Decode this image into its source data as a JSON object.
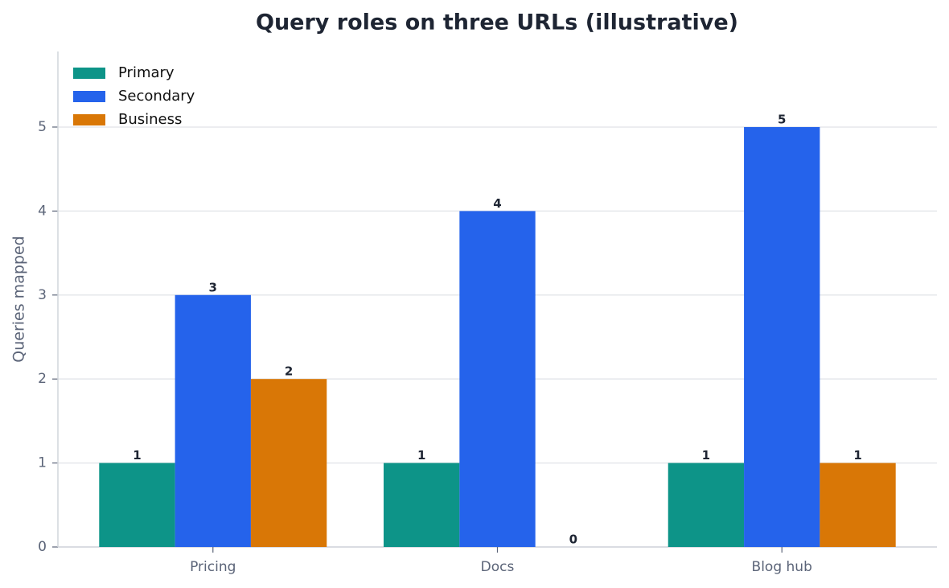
{
  "chart_data": {
    "type": "bar",
    "title": "Query roles on three URLs (illustrative)",
    "y_label": "Queries mapped",
    "categories": [
      "Pricing",
      "Docs",
      "Blog hub"
    ],
    "series": [
      {
        "name": "Primary",
        "color": "#0d9488",
        "values": [
          1,
          1,
          1
        ]
      },
      {
        "name": "Secondary",
        "color": "#2563eb",
        "values": [
          3,
          4,
          5
        ]
      },
      {
        "name": "Business",
        "color": "#d97706",
        "values": [
          2,
          0,
          1
        ]
      }
    ],
    "ylim": [
      0,
      5.9
    ],
    "yticks": [
      0,
      1,
      2,
      3,
      4,
      5
    ],
    "grid": true,
    "legend": "upper-left"
  }
}
